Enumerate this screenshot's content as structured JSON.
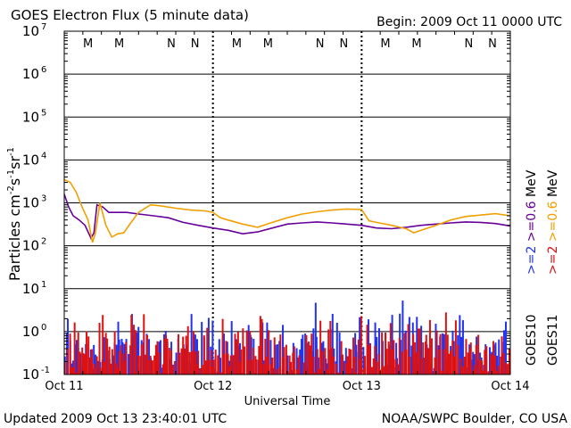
{
  "chart_data": {
    "type": "line",
    "title": "GOES Electron Flux (5 minute data)",
    "begin_label": "Begin: 2009 Oct 11 0000 UTC",
    "xlabel": "Universal Time",
    "ylabel": "Particles cm",
    "ylabel_parts": [
      "Particles cm",
      "-2",
      "s",
      "-1",
      "sr",
      "-1"
    ],
    "y_scale": "log",
    "ylim": [
      0.1,
      10000000
    ],
    "y_ticks": [
      {
        "base": "10",
        "exp": "7"
      },
      {
        "base": "10",
        "exp": "6"
      },
      {
        "base": "10",
        "exp": "5"
      },
      {
        "base": "10",
        "exp": "4"
      },
      {
        "base": "10",
        "exp": "3"
      },
      {
        "base": "10",
        "exp": "2"
      },
      {
        "base": "10",
        "exp": "1"
      },
      {
        "base": "10",
        "exp": "0"
      },
      {
        "base": "10",
        "exp": "-1"
      }
    ],
    "x_ticks": [
      "Oct 11",
      "Oct 12",
      "Oct 13",
      "Oct 14"
    ],
    "xlim_days": [
      0,
      3
    ],
    "threshold_line": 1000,
    "mn_markers": [
      {
        "day": 0.16,
        "label": "M",
        "color": "#2233cc"
      },
      {
        "day": 0.37,
        "label": "M",
        "color": "#cc2222"
      },
      {
        "day": 0.72,
        "label": "N",
        "color": "#2233cc"
      },
      {
        "day": 0.88,
        "label": "N",
        "color": "#cc2222"
      },
      {
        "day": 1.16,
        "label": "M",
        "color": "#2233cc"
      },
      {
        "day": 1.37,
        "label": "M",
        "color": "#cc2222"
      },
      {
        "day": 1.72,
        "label": "N",
        "color": "#2233cc"
      },
      {
        "day": 1.88,
        "label": "N",
        "color": "#cc2222"
      },
      {
        "day": 2.16,
        "label": "M",
        "color": "#2233cc"
      },
      {
        "day": 2.37,
        "label": "M",
        "color": "#cc2222"
      },
      {
        "day": 2.72,
        "label": "N",
        "color": "#2233cc"
      },
      {
        "day": 2.88,
        "label": "N",
        "color": "#cc2222"
      }
    ],
    "series": [
      {
        "name": ">=0.6 MeV",
        "satellite": "GOES10",
        "color": "#660099",
        "x": [
          0,
          0.03,
          0.06,
          0.1,
          0.14,
          0.18,
          0.2,
          0.22,
          0.26,
          0.3,
          0.36,
          0.42,
          0.5,
          0.6,
          0.7,
          0.8,
          0.9,
          1.0,
          1.1,
          1.2,
          1.3,
          1.4,
          1.5,
          1.6,
          1.7,
          1.8,
          1.9,
          2.0,
          2.1,
          2.2,
          2.3,
          2.4,
          2.5,
          2.6,
          2.7,
          2.8,
          2.9,
          3.0
        ],
        "y": [
          1600,
          800,
          500,
          400,
          300,
          150,
          200,
          900,
          800,
          600,
          600,
          600,
          550,
          500,
          450,
          350,
          300,
          260,
          230,
          190,
          210,
          260,
          320,
          340,
          360,
          340,
          320,
          300,
          260,
          250,
          270,
          300,
          320,
          340,
          360,
          350,
          330,
          290
        ]
      },
      {
        "name": ">=2 MeV",
        "satellite": "GOES10",
        "color": "#2233ee",
        "noise": [
          0.1,
          6
        ]
      },
      {
        "name": ">=0.6 MeV",
        "satellite": "GOES11",
        "color": "#f0a000",
        "x": [
          0,
          0.04,
          0.08,
          0.12,
          0.16,
          0.19,
          0.21,
          0.24,
          0.28,
          0.32,
          0.36,
          0.4,
          0.45,
          0.5,
          0.58,
          0.65,
          0.75,
          0.85,
          0.95,
          1.0,
          1.05,
          1.1,
          1.2,
          1.3,
          1.4,
          1.5,
          1.6,
          1.7,
          1.8,
          1.9,
          2.0,
          2.05,
          2.1,
          2.2,
          2.3,
          2.35,
          2.4,
          2.5,
          2.6,
          2.7,
          2.8,
          2.9,
          3.0
        ],
        "y": [
          3500,
          3000,
          1800,
          800,
          400,
          120,
          200,
          1000,
          300,
          160,
          190,
          200,
          350,
          600,
          900,
          850,
          750,
          680,
          650,
          600,
          450,
          400,
          320,
          270,
          350,
          450,
          550,
          620,
          680,
          720,
          700,
          380,
          350,
          300,
          250,
          200,
          230,
          300,
          400,
          480,
          520,
          560,
          500
        ]
      },
      {
        "name": ">=2 MeV",
        "satellite": "GOES11",
        "color": "#dd1111",
        "noise": [
          0.1,
          4
        ]
      }
    ],
    "legend": [
      {
        "sat": "GOES10",
        "low": ">=2",
        "low_color": "#2233ee",
        "high": ">=0.6",
        "high_color": "#660099",
        "unit": "MeV"
      },
      {
        "sat": "GOES11",
        "low": ">=2",
        "low_color": "#dd1111",
        "high": ">=0.6",
        "high_color": "#f0a000",
        "unit": "MeV"
      }
    ]
  },
  "footer": {
    "updated": "Updated 2009 Oct 13 23:40:01 UTC",
    "source": "NOAA/SWPC Boulder, CO USA"
  }
}
